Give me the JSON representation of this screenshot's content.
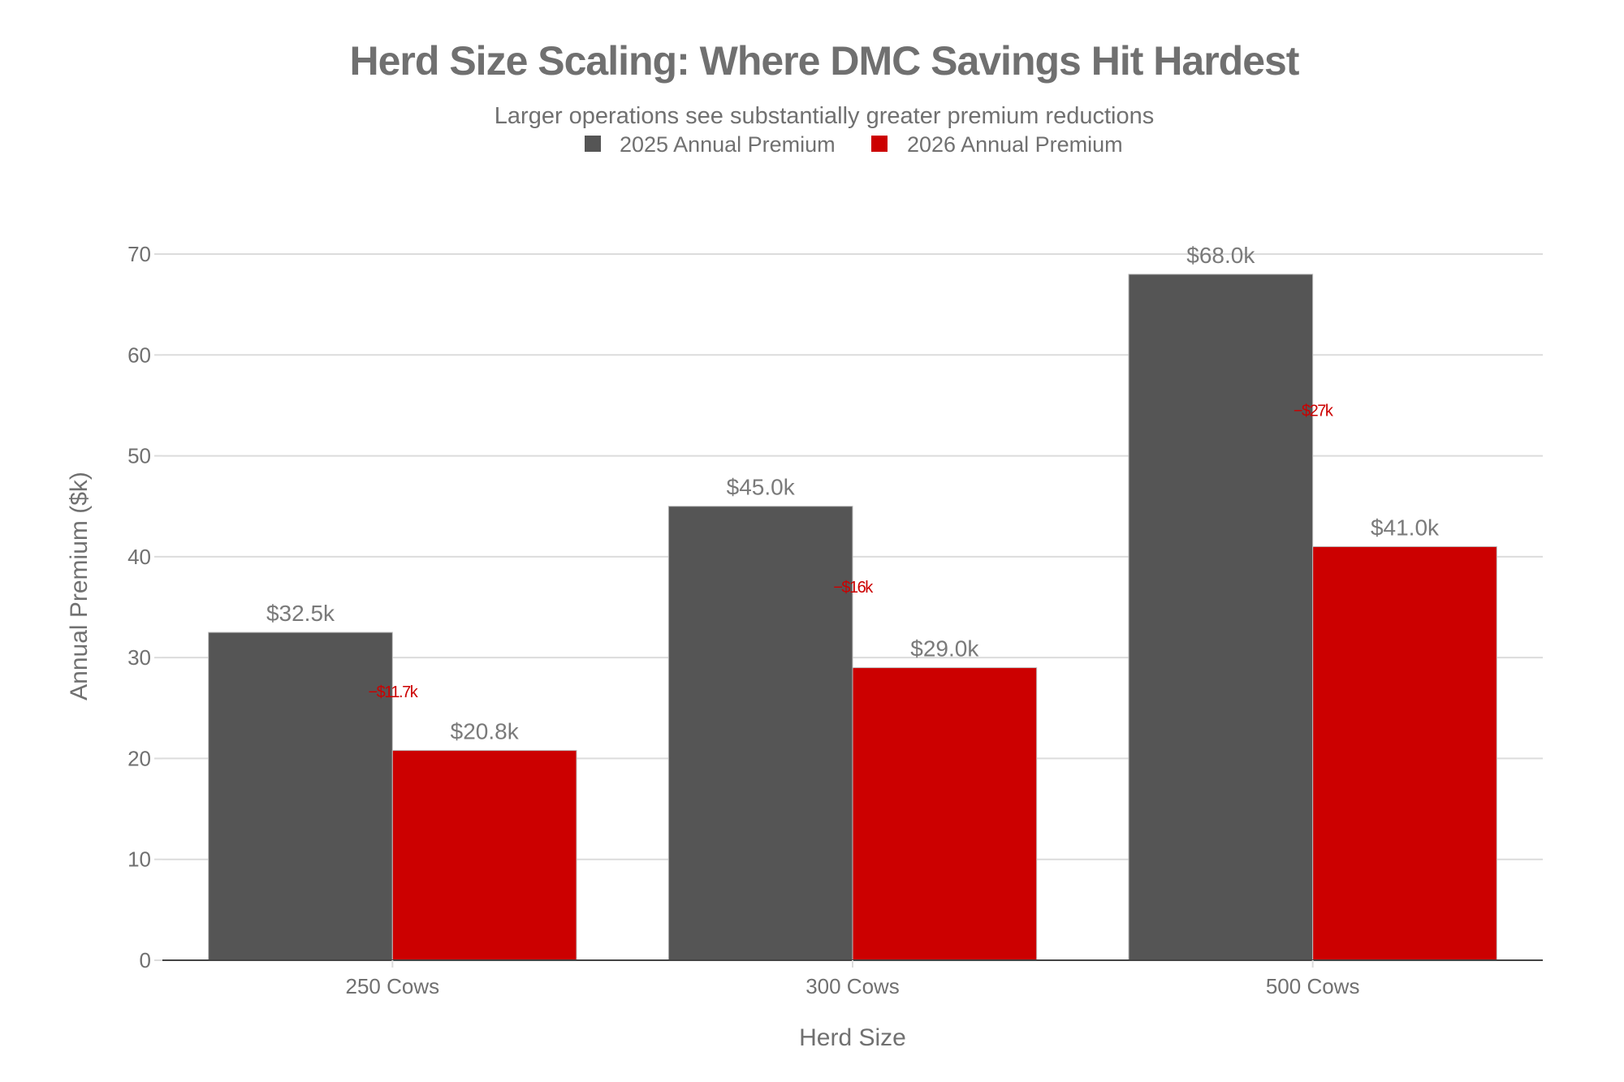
{
  "chart_data": {
    "type": "bar",
    "title": "Herd Size Scaling: Where DMC Savings Hit Hardest",
    "subtitle": "Larger operations see substantially greater premium reductions",
    "xlabel": "Herd Size",
    "ylabel": "Annual Premium ($k)",
    "categories": [
      "250 Cows",
      "300 Cows",
      "500 Cows"
    ],
    "ylim": [
      0,
      70
    ],
    "yticks": [
      0,
      10,
      20,
      30,
      40,
      50,
      60,
      70
    ],
    "grid": true,
    "legend_position": "top-center",
    "series": [
      {
        "name": "2025 Annual Premium",
        "color": "#555555",
        "values": [
          32.5,
          45.0,
          68.0
        ],
        "labels": [
          "$32.5k",
          "$45.0k",
          "$68.0k"
        ]
      },
      {
        "name": "2026 Annual Premium",
        "color": "#cc0000",
        "values": [
          20.8,
          29.0,
          41.0
        ],
        "labels": [
          "$20.8k",
          "$29.0k",
          "$41.0k"
        ]
      }
    ],
    "annotations": [
      {
        "category": "250 Cows",
        "text": "−$11.7k",
        "y": 26.65,
        "color": "#cc0000"
      },
      {
        "category": "300 Cows",
        "text": "−$16k",
        "y": 37.0,
        "color": "#cc0000"
      },
      {
        "category": "500 Cows",
        "text": "−$27k",
        "y": 54.5,
        "color": "#cc0000"
      }
    ]
  }
}
